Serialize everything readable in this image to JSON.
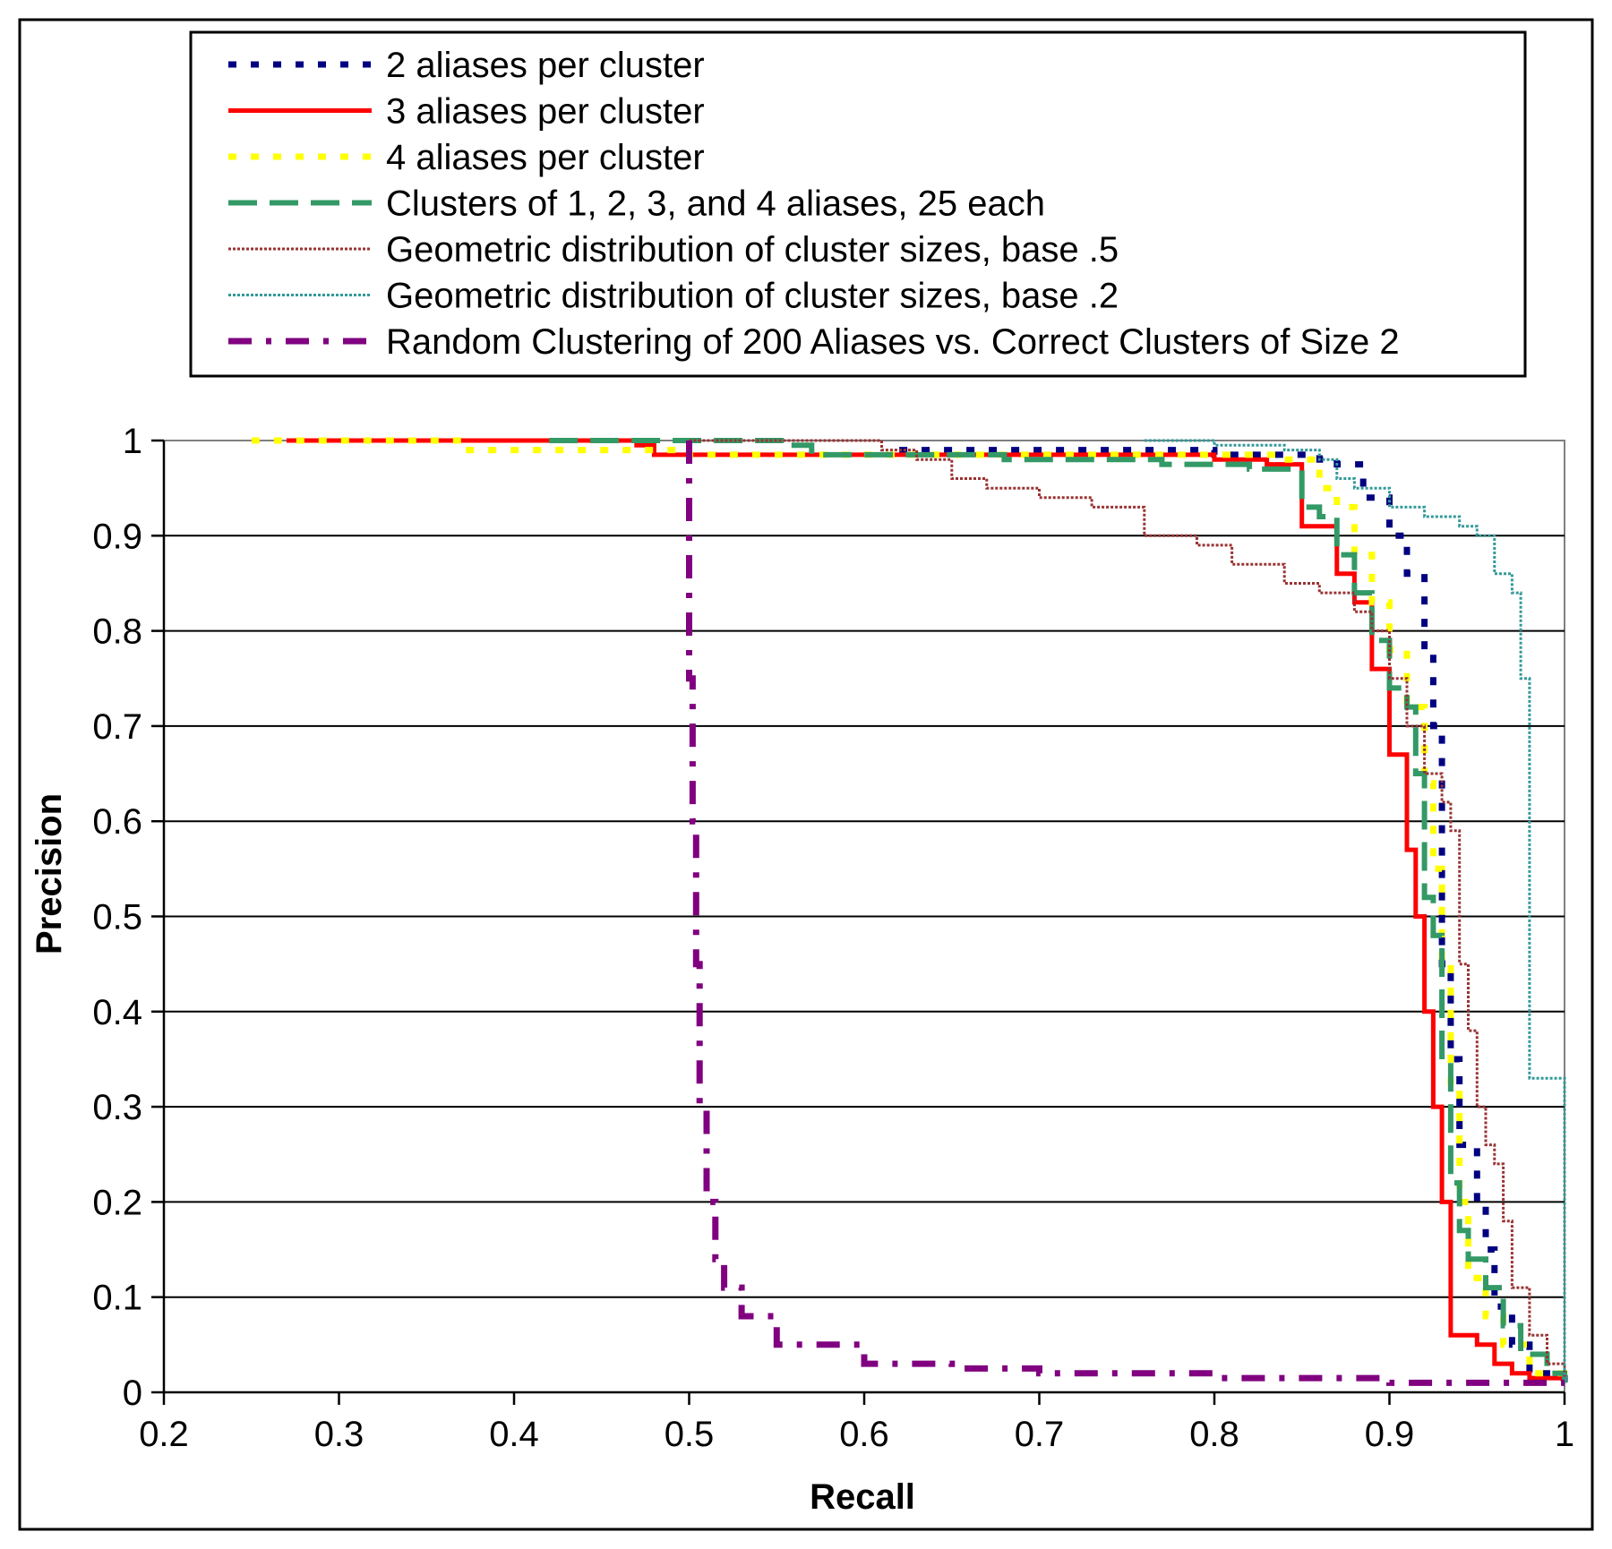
{
  "chart_data": {
    "type": "line",
    "title": "",
    "xlabel": "Recall",
    "ylabel": "Precision",
    "xlim": [
      0.2,
      1.0
    ],
    "ylim": [
      0,
      1.0
    ],
    "x_ticks": [
      "0.2",
      "0.3",
      "0.4",
      "0.5",
      "0.6",
      "0.7",
      "0.8",
      "0.9",
      "1"
    ],
    "y_ticks": [
      "0",
      "0.1",
      "0.2",
      "0.3",
      "0.4",
      "0.5",
      "0.6",
      "0.7",
      "0.8",
      "0.9",
      "1"
    ],
    "grid": "horizontal",
    "legend_position": "top",
    "plot_background": "#ffffff",
    "series": [
      {
        "name": "2 aliases per cluster",
        "color": "#000080",
        "style": "dotted",
        "points": [
          [
            0.62,
            0.99
          ],
          [
            0.73,
            0.99
          ],
          [
            0.8,
            0.985
          ],
          [
            0.86,
            0.98
          ],
          [
            0.87,
            0.975
          ],
          [
            0.885,
            0.94
          ],
          [
            0.9,
            0.9
          ],
          [
            0.91,
            0.86
          ],
          [
            0.92,
            0.78
          ],
          [
            0.925,
            0.7
          ],
          [
            0.93,
            0.62
          ],
          [
            0.93,
            0.45
          ],
          [
            0.935,
            0.35
          ],
          [
            0.94,
            0.26
          ],
          [
            0.95,
            0.2
          ],
          [
            0.955,
            0.15
          ],
          [
            0.96,
            0.09
          ],
          [
            0.97,
            0.05
          ],
          [
            0.98,
            0.02
          ],
          [
            0.99,
            0.015
          ],
          [
            1.0,
            0.01
          ]
        ]
      },
      {
        "name": "3 aliases per cluster",
        "color": "#ff0000",
        "style": "solid",
        "points": [
          [
            0.27,
            1.0
          ],
          [
            0.47,
            0.995
          ],
          [
            0.48,
            0.985
          ],
          [
            0.63,
            0.985
          ],
          [
            0.8,
            0.98
          ],
          [
            0.83,
            0.975
          ],
          [
            0.85,
            0.97
          ],
          [
            0.85,
            0.91
          ],
          [
            0.87,
            0.9
          ],
          [
            0.87,
            0.86
          ],
          [
            0.88,
            0.83
          ],
          [
            0.89,
            0.82
          ],
          [
            0.89,
            0.76
          ],
          [
            0.9,
            0.7
          ],
          [
            0.9,
            0.67
          ],
          [
            0.91,
            0.67
          ],
          [
            0.91,
            0.57
          ],
          [
            0.915,
            0.5
          ],
          [
            0.92,
            0.4
          ],
          [
            0.925,
            0.35
          ],
          [
            0.925,
            0.3
          ],
          [
            0.93,
            0.29
          ],
          [
            0.93,
            0.2
          ],
          [
            0.935,
            0.06
          ],
          [
            0.95,
            0.05
          ],
          [
            0.96,
            0.03
          ],
          [
            0.97,
            0.02
          ],
          [
            0.98,
            0.015
          ],
          [
            1.0,
            0.01
          ]
        ]
      },
      {
        "name": "4 aliases per cluster",
        "color": "#ffff00",
        "style": "dotted",
        "points": [
          [
            0.25,
            1.0
          ],
          [
            0.36,
            1.0
          ],
          [
            0.37,
            0.99
          ],
          [
            0.47,
            0.99
          ],
          [
            0.5,
            0.985
          ],
          [
            0.65,
            0.985
          ],
          [
            0.84,
            0.98
          ],
          [
            0.86,
            0.95
          ],
          [
            0.87,
            0.93
          ],
          [
            0.88,
            0.88
          ],
          [
            0.89,
            0.83
          ],
          [
            0.9,
            0.78
          ],
          [
            0.91,
            0.72
          ],
          [
            0.92,
            0.64
          ],
          [
            0.925,
            0.55
          ],
          [
            0.93,
            0.45
          ],
          [
            0.935,
            0.32
          ],
          [
            0.94,
            0.2
          ],
          [
            0.945,
            0.12
          ],
          [
            0.955,
            0.08
          ],
          [
            0.965,
            0.05
          ],
          [
            0.98,
            0.02
          ],
          [
            1.0,
            0.01
          ]
        ]
      },
      {
        "name": "Clusters of 1, 2, 3, and 4 aliases, 25 each",
        "color": "#339966",
        "style": "dashed",
        "points": [
          [
            0.42,
            1.0
          ],
          [
            0.56,
            0.995
          ],
          [
            0.57,
            0.985
          ],
          [
            0.66,
            0.985
          ],
          [
            0.68,
            0.98
          ],
          [
            0.77,
            0.975
          ],
          [
            0.82,
            0.97
          ],
          [
            0.85,
            0.96
          ],
          [
            0.85,
            0.93
          ],
          [
            0.86,
            0.92
          ],
          [
            0.87,
            0.88
          ],
          [
            0.88,
            0.84
          ],
          [
            0.89,
            0.79
          ],
          [
            0.9,
            0.74
          ],
          [
            0.91,
            0.72
          ],
          [
            0.915,
            0.65
          ],
          [
            0.92,
            0.52
          ],
          [
            0.925,
            0.48
          ],
          [
            0.93,
            0.35
          ],
          [
            0.935,
            0.22
          ],
          [
            0.94,
            0.17
          ],
          [
            0.945,
            0.14
          ],
          [
            0.955,
            0.11
          ],
          [
            0.965,
            0.07
          ],
          [
            0.975,
            0.04
          ],
          [
            0.99,
            0.02
          ],
          [
            1.0,
            0.01
          ]
        ]
      },
      {
        "name": "Geometric distribution of cluster sizes, base .5",
        "color": "#993333",
        "style": "double",
        "points": [
          [
            0.5,
            1.0
          ],
          [
            0.6,
            1.0
          ],
          [
            0.61,
            0.99
          ],
          [
            0.63,
            0.98
          ],
          [
            0.65,
            0.96
          ],
          [
            0.67,
            0.95
          ],
          [
            0.7,
            0.94
          ],
          [
            0.73,
            0.93
          ],
          [
            0.76,
            0.9
          ],
          [
            0.79,
            0.89
          ],
          [
            0.81,
            0.87
          ],
          [
            0.84,
            0.85
          ],
          [
            0.86,
            0.84
          ],
          [
            0.88,
            0.82
          ],
          [
            0.89,
            0.8
          ],
          [
            0.9,
            0.75
          ],
          [
            0.91,
            0.7
          ],
          [
            0.92,
            0.65
          ],
          [
            0.93,
            0.62
          ],
          [
            0.935,
            0.59
          ],
          [
            0.94,
            0.45
          ],
          [
            0.945,
            0.38
          ],
          [
            0.95,
            0.3
          ],
          [
            0.955,
            0.26
          ],
          [
            0.96,
            0.24
          ],
          [
            0.965,
            0.18
          ],
          [
            0.97,
            0.11
          ],
          [
            0.98,
            0.06
          ],
          [
            0.99,
            0.03
          ],
          [
            1.0,
            0.015
          ]
        ]
      },
      {
        "name": "Geometric distribution of cluster sizes, base .2",
        "color": "#339999",
        "style": "double",
        "points": [
          [
            0.76,
            1.0
          ],
          [
            0.8,
            0.995
          ],
          [
            0.84,
            0.99
          ],
          [
            0.86,
            0.98
          ],
          [
            0.87,
            0.96
          ],
          [
            0.88,
            0.95
          ],
          [
            0.9,
            0.93
          ],
          [
            0.92,
            0.92
          ],
          [
            0.94,
            0.91
          ],
          [
            0.95,
            0.9
          ],
          [
            0.96,
            0.86
          ],
          [
            0.97,
            0.84
          ],
          [
            0.975,
            0.75
          ],
          [
            0.98,
            0.33
          ],
          [
            0.99,
            0.33
          ],
          [
            1.0,
            0.33
          ],
          [
            1.0,
            0.01
          ]
        ]
      },
      {
        "name": "Random Clustering of 200 Aliases vs. Correct Clusters of Size 2",
        "color": "#800080",
        "style": "dashdot",
        "points": [
          [
            0.5,
            1.0
          ],
          [
            0.5,
            0.9
          ],
          [
            0.5,
            0.75
          ],
          [
            0.502,
            0.6
          ],
          [
            0.504,
            0.45
          ],
          [
            0.506,
            0.3
          ],
          [
            0.51,
            0.2
          ],
          [
            0.515,
            0.14
          ],
          [
            0.52,
            0.11
          ],
          [
            0.53,
            0.08
          ],
          [
            0.55,
            0.05
          ],
          [
            0.6,
            0.03
          ],
          [
            0.65,
            0.025
          ],
          [
            0.7,
            0.02
          ],
          [
            0.8,
            0.015
          ],
          [
            0.9,
            0.01
          ],
          [
            1.0,
            0.01
          ]
        ]
      }
    ]
  }
}
